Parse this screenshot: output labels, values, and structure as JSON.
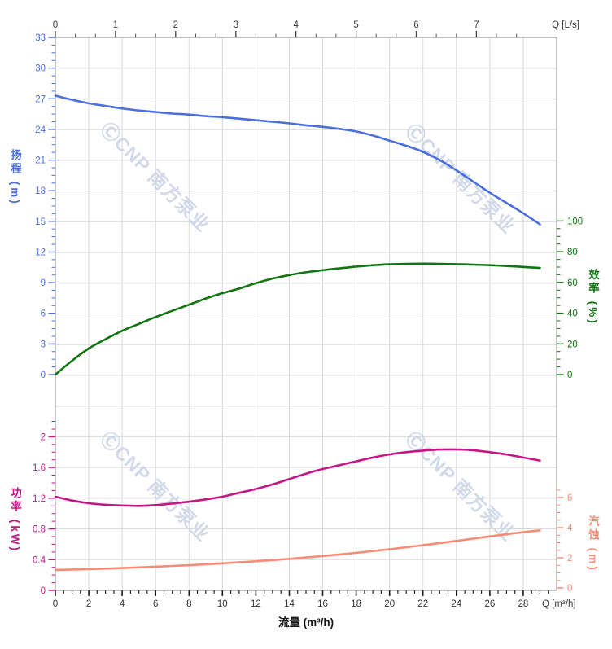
{
  "watermark": {
    "text": "ⒸCNP 南方泵业",
    "color": "#cdd5e7"
  },
  "chart_data": {
    "type": "line",
    "title": "",
    "grid": true,
    "legend": false,
    "x_flow_m3h": [
      0,
      1,
      2,
      3,
      4,
      5,
      6,
      7,
      8,
      9,
      10,
      11,
      12,
      13,
      14,
      15,
      16,
      17,
      18,
      19,
      20,
      21,
      22,
      23,
      24,
      25,
      26,
      27,
      28,
      29
    ],
    "x_axis_top": {
      "unit_label": "Q [L/s]",
      "min": 0,
      "max": 7,
      "major_step": 1,
      "minor_step": 0.3333,
      "minor_max": 7.67,
      "m3h_per_unit": 3.6,
      "tick_labels": [
        "0",
        "1",
        "2",
        "3",
        "4",
        "5",
        "6",
        "7"
      ]
    },
    "x_axis_bottom": {
      "title": "流量 (m³/h)",
      "unit_label": "Q [m³/h]",
      "min": 0,
      "max": 28,
      "major_step": 2,
      "minor_step": 0.5,
      "minor_max": 29.5,
      "tick_labels": [
        "0",
        "2",
        "4",
        "6",
        "8",
        "10",
        "12",
        "14",
        "16",
        "18",
        "20",
        "22",
        "24",
        "26",
        "28"
      ]
    },
    "axes": {
      "head": {
        "title": "扬程 (m)",
        "color": "#4a6fdc",
        "min": 0,
        "max": 33,
        "major_step": 3,
        "minor_step": 0.75,
        "minor_max": 33,
        "side": "left"
      },
      "efficiency": {
        "title": "效率 (%)",
        "color": "#117511",
        "min": 0,
        "max": 100,
        "major_step": 20,
        "minor_step": 5,
        "minor_max": 100,
        "side": "right"
      },
      "power": {
        "title": "功率 (kW)",
        "color": "#c71585",
        "min": 0,
        "max": 2,
        "major_step": 0.4,
        "minor_step": 0.1,
        "minor_max": 2.2,
        "side": "left"
      },
      "npsh": {
        "title": "汽蚀 (m)",
        "color": "#f98b76",
        "min": 0,
        "max": 6,
        "major_step": 2,
        "minor_step": 0.5,
        "minor_max": 6.5,
        "side": "right"
      }
    },
    "series": [
      {
        "name": "扬程",
        "axis": "head",
        "color": "#4a6fdc",
        "values": [
          27.3,
          26.9,
          26.55,
          26.3,
          26.05,
          25.85,
          25.7,
          25.55,
          25.45,
          25.3,
          25.2,
          25.05,
          24.9,
          24.75,
          24.6,
          24.4,
          24.25,
          24.05,
          23.8,
          23.4,
          22.9,
          22.4,
          21.8,
          21.0,
          20.0,
          18.9,
          17.8,
          16.8,
          15.8,
          14.7
        ]
      },
      {
        "name": "效率",
        "axis": "efficiency",
        "color": "#117511",
        "values": [
          0,
          9,
          17,
          23,
          28.5,
          33,
          37.5,
          41.5,
          45.5,
          49.5,
          53,
          56,
          59.5,
          62.5,
          64.8,
          66.6,
          68,
          69.2,
          70.3,
          71.2,
          71.8,
          72.1,
          72.2,
          72.1,
          71.9,
          71.6,
          71.2,
          70.7,
          70.1,
          69.4
        ]
      },
      {
        "name": "功率",
        "axis": "power",
        "color": "#c71585",
        "values": [
          1.22,
          1.17,
          1.135,
          1.115,
          1.105,
          1.1,
          1.11,
          1.13,
          1.155,
          1.185,
          1.22,
          1.27,
          1.32,
          1.38,
          1.45,
          1.52,
          1.58,
          1.63,
          1.68,
          1.73,
          1.77,
          1.8,
          1.82,
          1.833,
          1.835,
          1.825,
          1.8,
          1.77,
          1.73,
          1.69
        ]
      },
      {
        "name": "汽蚀",
        "axis": "npsh",
        "color": "#f98b76",
        "values": [
          1.2,
          1.22,
          1.25,
          1.28,
          1.32,
          1.36,
          1.41,
          1.46,
          1.51,
          1.57,
          1.63,
          1.7,
          1.77,
          1.85,
          1.93,
          2.02,
          2.12,
          2.22,
          2.33,
          2.45,
          2.57,
          2.7,
          2.84,
          2.98,
          3.12,
          3.27,
          3.42,
          3.56,
          3.7,
          3.82
        ]
      }
    ]
  }
}
